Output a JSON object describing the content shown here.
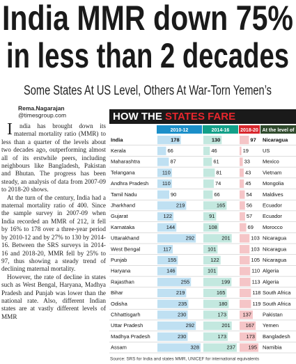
{
  "header": {
    "title_lines": [
      "India MMR down 75%",
      "in less than 2 decades"
    ],
    "subtitle": "Some States At US Level, Others At War-Torn Yemen’s"
  },
  "byline": {
    "name": "Rema.Nagarajan",
    "handle": "@timesgroup.com"
  },
  "article": {
    "paragraphs": [
      "India has brought down its maternal mortality ratio (MMR) to less than a quarter of the levels about two decades ago, outperforming almost all of its erstwhile peers, including neighbours like Bangladesh, Pakistan and Bhutan. The progress has been steady, an analysis of data from 2007-09 to 2018-20 shows.",
      "At the turn of the century, India had a maternal mortality ratio of 400. Since the sample survey in 2007-09 when India recorded an MMR of 212, it fell by 16% to 178 over a three-year period by 2010-12 and by 27% to 130 by 2014-16. Between the SRS surveys in 2014-16 and 2018-20, MMR fell by 25% to 97, thus showing a steady trend of declining maternal mortality.",
      "However, the rate of decline in states such as West Bengal, Haryana, Madhya Pradesh and Punjab was lower than the national rate. Also, different Indian states are at vastly different levels of MMR"
    ]
  },
  "table": {
    "title_part1": "HOW THE",
    "title_part2": "STATES FARE",
    "columns": [
      "2010-12",
      "2014-16",
      "2018-20",
      "At the level of"
    ],
    "rows": [
      [
        "India",
        178,
        130,
        97,
        "Nicaragua"
      ],
      [
        "Kerala",
        66,
        46,
        19,
        "US"
      ],
      [
        "Maharashtra",
        87,
        61,
        33,
        "Mexico"
      ],
      [
        "Telangana",
        110,
        81,
        43,
        "Vietnam"
      ],
      [
        "Andhra Pradesh",
        110,
        74,
        45,
        "Mongolia"
      ],
      [
        "Tamil Nadu",
        90,
        66,
        54,
        "Maldives"
      ],
      [
        "Jharkhand",
        219,
        165,
        56,
        "Ecuador"
      ],
      [
        "Gujarat",
        122,
        91,
        57,
        "Ecuador"
      ],
      [
        "Karnataka",
        144,
        108,
        69,
        "Morocco"
      ],
      [
        "Uttarakhand",
        292,
        201,
        103,
        "Nicaragua"
      ],
      [
        "West Bengal",
        117,
        101,
        103,
        "Nicaragua"
      ],
      [
        "Punjab",
        155,
        122,
        105,
        "Nicaragua"
      ],
      [
        "Haryana",
        146,
        101,
        110,
        "Algeria"
      ],
      [
        "Rajasthan",
        255,
        199,
        113,
        "Algeria"
      ],
      [
        "Bihar",
        219,
        165,
        118,
        "South Africa"
      ],
      [
        "Odisha",
        235,
        180,
        119,
        "South Africa"
      ],
      [
        "Chhattisgarh",
        230,
        173,
        137,
        "Pakistan"
      ],
      [
        "Uttar Pradesh",
        292,
        201,
        167,
        "Yemen"
      ],
      [
        "Madhya Pradesh",
        230,
        173,
        173,
        "Bangladesh"
      ],
      [
        "Assam",
        328,
        237,
        195,
        "Namibia"
      ]
    ]
  },
  "source": "Source: SRS for India and states MMR, UNICEF for international equivalents"
}
